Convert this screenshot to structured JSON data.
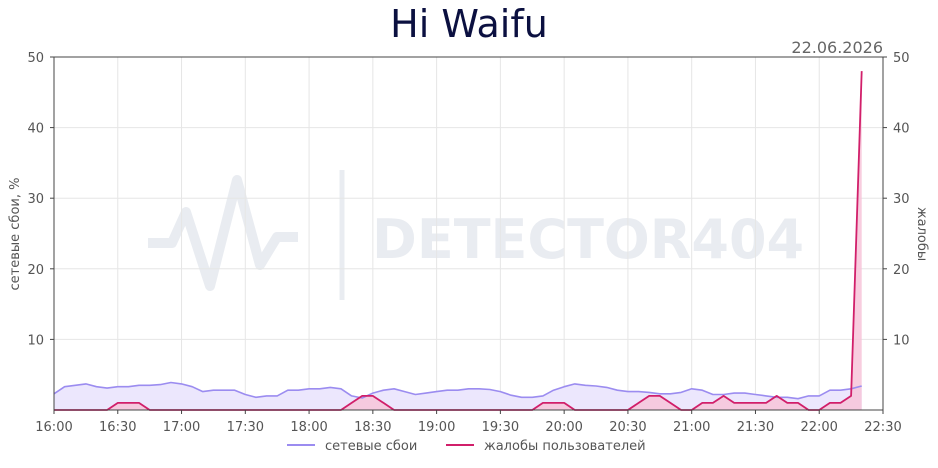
{
  "chart_data": {
    "type": "line",
    "title": "Hi Waifu",
    "date": "22.06.2026",
    "ylabel_left": "сетевые сбои, %",
    "ylabel_right": "жалобы",
    "watermark": "DETECTOR404",
    "ylim": [
      0,
      50
    ],
    "y_ticks": [
      "10",
      "20",
      "30",
      "40",
      "50"
    ],
    "x_ticks": [
      "16:00",
      "16:30",
      "17:00",
      "17:30",
      "18:00",
      "18:30",
      "19:00",
      "19:30",
      "20:00",
      "20:30",
      "21:00",
      "21:30",
      "22:00",
      "22:30"
    ],
    "grid": true,
    "legend_position": "bottom",
    "colors": {
      "outages": "#9b8cf0",
      "outages_fill": "#ece7fd",
      "complaints": "#d11f6a",
      "complaints_fill": "#f7c4d9"
    },
    "series": [
      {
        "name": "сетевые сбои",
        "x": [
          "16:00",
          "16:05",
          "16:10",
          "16:15",
          "16:20",
          "16:25",
          "16:30",
          "16:35",
          "16:40",
          "16:45",
          "16:50",
          "16:55",
          "17:00",
          "17:05",
          "17:10",
          "17:15",
          "17:20",
          "17:25",
          "17:30",
          "17:35",
          "17:40",
          "17:45",
          "17:50",
          "17:55",
          "18:00",
          "18:05",
          "18:10",
          "18:15",
          "18:20",
          "18:25",
          "18:30",
          "18:35",
          "18:40",
          "18:45",
          "18:50",
          "18:55",
          "19:00",
          "19:05",
          "19:10",
          "19:15",
          "19:20",
          "19:25",
          "19:30",
          "19:35",
          "19:40",
          "19:45",
          "19:50",
          "19:55",
          "20:00",
          "20:05",
          "20:10",
          "20:15",
          "20:20",
          "20:25",
          "20:30",
          "20:35",
          "20:40",
          "20:45",
          "20:50",
          "20:55",
          "21:00",
          "21:05",
          "21:10",
          "21:15",
          "21:20",
          "21:25",
          "21:30",
          "21:35",
          "21:40",
          "21:45",
          "21:50",
          "21:55",
          "22:00",
          "22:05",
          "22:10",
          "22:15",
          "22:20"
        ],
        "values": [
          2.3,
          3.3,
          3.5,
          3.7,
          3.3,
          3.1,
          3.3,
          3.3,
          3.5,
          3.5,
          3.6,
          3.9,
          3.7,
          3.3,
          2.6,
          2.8,
          2.8,
          2.8,
          2.2,
          1.8,
          2.0,
          2.0,
          2.8,
          2.8,
          3.0,
          3.0,
          3.2,
          3.0,
          2.0,
          1.7,
          2.4,
          2.8,
          3.0,
          2.6,
          2.2,
          2.4,
          2.6,
          2.8,
          2.8,
          3.0,
          3.0,
          2.9,
          2.6,
          2.1,
          1.8,
          1.8,
          2.0,
          2.8,
          3.3,
          3.7,
          3.5,
          3.4,
          3.2,
          2.8,
          2.6,
          2.6,
          2.5,
          2.3,
          2.3,
          2.5,
          3.0,
          2.8,
          2.2,
          2.2,
          2.4,
          2.4,
          2.2,
          2.0,
          1.8,
          1.8,
          1.6,
          2.0,
          2.0,
          2.8,
          2.8,
          3.0,
          3.4
        ]
      },
      {
        "name": "жалобы пользователей",
        "x": [
          "16:00",
          "16:05",
          "16:10",
          "16:15",
          "16:20",
          "16:25",
          "16:30",
          "16:35",
          "16:40",
          "16:45",
          "16:50",
          "16:55",
          "17:00",
          "17:05",
          "17:10",
          "17:15",
          "17:20",
          "17:25",
          "17:30",
          "17:35",
          "17:40",
          "17:45",
          "17:50",
          "17:55",
          "18:00",
          "18:05",
          "18:10",
          "18:15",
          "18:20",
          "18:25",
          "18:30",
          "18:35",
          "18:40",
          "18:45",
          "18:50",
          "18:55",
          "19:00",
          "19:05",
          "19:10",
          "19:15",
          "19:20",
          "19:25",
          "19:30",
          "19:35",
          "19:40",
          "19:45",
          "19:50",
          "19:55",
          "20:00",
          "20:05",
          "20:10",
          "20:15",
          "20:20",
          "20:25",
          "20:30",
          "20:35",
          "20:40",
          "20:45",
          "20:50",
          "20:55",
          "21:00",
          "21:05",
          "21:10",
          "21:15",
          "21:20",
          "21:25",
          "21:30",
          "21:35",
          "21:40",
          "21:45",
          "21:50",
          "21:55",
          "22:00",
          "22:05",
          "22:10",
          "22:15",
          "22:20"
        ],
        "values": [
          0,
          0,
          0,
          0,
          0,
          0,
          1,
          1,
          1,
          0,
          0,
          0,
          0,
          0,
          0,
          0,
          0,
          0,
          0,
          0,
          0,
          0,
          0,
          0,
          0,
          0,
          0,
          0,
          1,
          2,
          2,
          1,
          0,
          0,
          0,
          0,
          0,
          0,
          0,
          0,
          0,
          0,
          0,
          0,
          0,
          0,
          1,
          1,
          1,
          0,
          0,
          0,
          0,
          0,
          0,
          1,
          2,
          2,
          1,
          0,
          0,
          1,
          1,
          2,
          1,
          1,
          1,
          1,
          2,
          1,
          1,
          0,
          0,
          1,
          1,
          2,
          48
        ]
      }
    ]
  }
}
